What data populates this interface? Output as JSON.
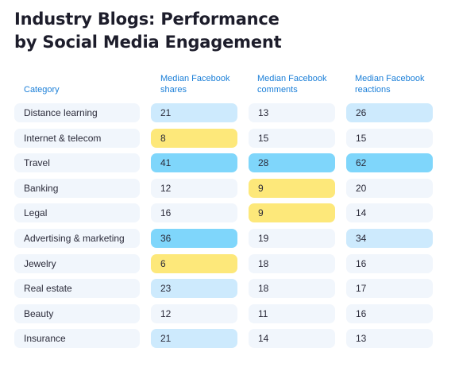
{
  "chart_data": {
    "type": "table",
    "title_lines": [
      "Industry Blogs: Performance",
      "by Social Media Engagement"
    ],
    "headers": {
      "category": "Category",
      "shares": [
        "Median Facebook",
        "shares"
      ],
      "comments": [
        "Median Facebook",
        "comments"
      ],
      "reactions": [
        "Median Facebook",
        "reactions"
      ]
    },
    "rows": [
      {
        "category": "Distance learning",
        "shares": 21,
        "comments": 13,
        "reactions": 26
      },
      {
        "category": "Internet & telecom",
        "shares": 8,
        "comments": 15,
        "reactions": 15
      },
      {
        "category": "Travel",
        "shares": 41,
        "comments": 28,
        "reactions": 62
      },
      {
        "category": "Banking",
        "shares": 12,
        "comments": 9,
        "reactions": 20
      },
      {
        "category": "Legal",
        "shares": 16,
        "comments": 9,
        "reactions": 14
      },
      {
        "category": "Advertising & marketing",
        "shares": 36,
        "comments": 19,
        "reactions": 34
      },
      {
        "category": "Jewelry",
        "shares": 6,
        "comments": 18,
        "reactions": 16
      },
      {
        "category": "Real estate",
        "shares": 23,
        "comments": 18,
        "reactions": 17
      },
      {
        "category": "Beauty",
        "shares": 12,
        "comments": 11,
        "reactions": 16
      },
      {
        "category": "Insurance",
        "shares": 21,
        "comments": 14,
        "reactions": 13
      }
    ],
    "cell_colors": {
      "neutral": "#f1f6fc",
      "light_blue": "#cdeafd",
      "blue": "#7fd6fb",
      "yellow": "#fde87a"
    },
    "highlights": {
      "shares": [
        "light_blue",
        "yellow",
        "blue",
        "neutral",
        "neutral",
        "blue",
        "yellow",
        "light_blue",
        "neutral",
        "light_blue"
      ],
      "comments": [
        "neutral",
        "neutral",
        "blue",
        "yellow",
        "yellow",
        "neutral",
        "neutral",
        "neutral",
        "neutral",
        "neutral"
      ],
      "reactions": [
        "light_blue",
        "neutral",
        "blue",
        "neutral",
        "neutral",
        "light_blue",
        "neutral",
        "neutral",
        "neutral",
        "neutral"
      ]
    }
  }
}
